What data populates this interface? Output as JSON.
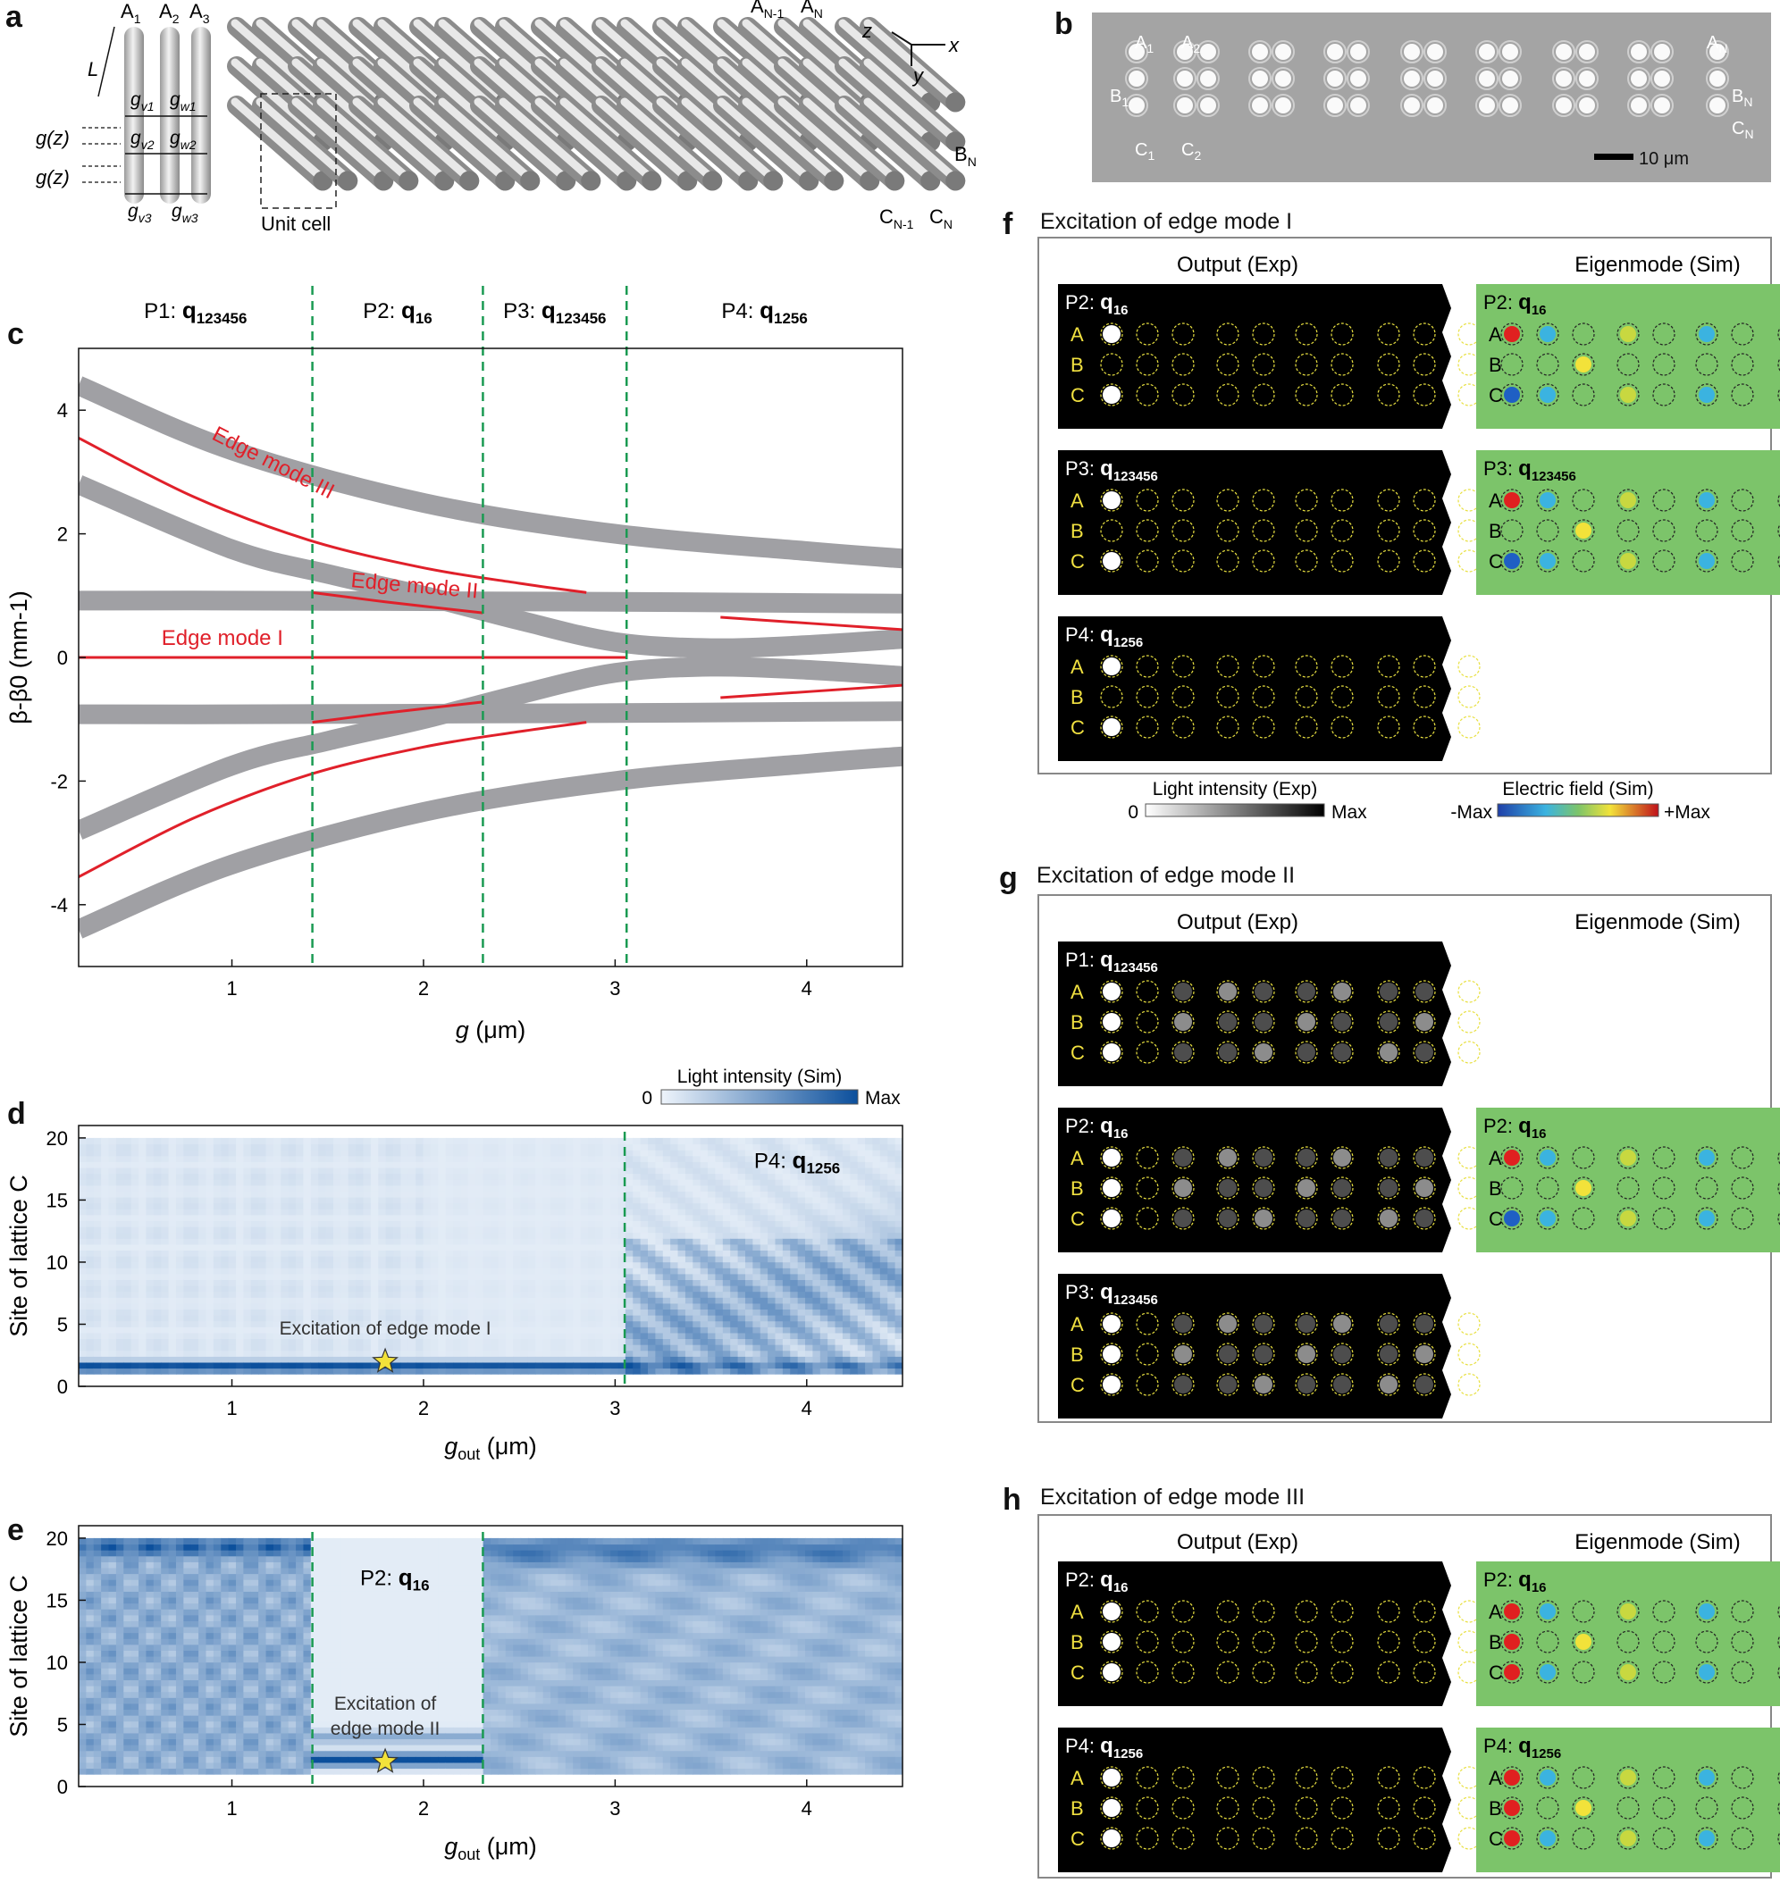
{
  "panel_letters": {
    "a": "a",
    "b": "b",
    "c": "c",
    "d": "d",
    "e": "e",
    "f": "f",
    "g": "g",
    "h": "h"
  },
  "panel_a": {
    "labels": {
      "A1": "A",
      "A2": "A",
      "A3": "A",
      "AN1": "A",
      "AN": "A",
      "BN": "B",
      "CN1": "C",
      "CN": "C",
      "L": "L",
      "gz": "g(z)",
      "gv": "g",
      "gw": "g",
      "unit_cell": "Unit cell",
      "axis_z": "z",
      "axis_x": "x",
      "axis_y": "y"
    },
    "subscripts": {
      "s1": "1",
      "s2": "2",
      "s3": "3",
      "sN": "N",
      "sN1": "N-1",
      "v1": "v1",
      "v2": "v2",
      "v3": "v3",
      "w1": "w1",
      "w2": "w2",
      "w3": "w3"
    }
  },
  "panel_b": {
    "labels": {
      "A1": "A",
      "A2": "A",
      "AN": "A",
      "B1": "B",
      "BN": "B",
      "C1": "C",
      "C2": "C",
      "CN": "C"
    },
    "scalebar": "10 μm"
  },
  "chart_data": [
    {
      "id": "c",
      "type": "line",
      "xlabel": "g (μm)",
      "ylabel": "β-β0 (mm-1)",
      "xlim": [
        0.2,
        4.5
      ],
      "ylim": [
        -5,
        5
      ],
      "xticks": [
        1,
        2,
        3,
        4
      ],
      "yticks": [
        -4,
        -2,
        0,
        2,
        4
      ],
      "phase_boundaries": [
        1.42,
        2.31,
        3.06
      ],
      "phases": [
        {
          "name": "P1:",
          "q": "q",
          "sub": "123456"
        },
        {
          "name": "P2:",
          "q": "q",
          "sub": "16"
        },
        {
          "name": "P3:",
          "q": "q",
          "sub": "123456"
        },
        {
          "name": "P4:",
          "q": "q",
          "sub": "1256"
        }
      ],
      "bulk_bands": [
        {
          "name": "top",
          "x": [
            0.2,
            1,
            2,
            3,
            4,
            4.5
          ],
          "y": [
            4.4,
            3.35,
            2.5,
            2.0,
            1.72,
            1.6
          ]
        },
        {
          "name": "upper",
          "x": [
            0.2,
            1,
            1.5,
            2,
            2.5,
            3,
            3.5,
            4,
            4.5
          ],
          "y": [
            2.8,
            1.75,
            1.35,
            1.0,
            0.6,
            0.25,
            0.15,
            0.2,
            0.3
          ]
        },
        {
          "name": "flat+",
          "x": [
            0.2,
            1,
            2,
            3,
            4,
            4.5
          ],
          "y": [
            0.92,
            0.92,
            0.91,
            0.9,
            0.88,
            0.87
          ]
        },
        {
          "name": "flat-",
          "x": [
            0.2,
            1,
            2,
            3,
            4,
            4.5
          ],
          "y": [
            -0.92,
            -0.92,
            -0.91,
            -0.9,
            -0.88,
            -0.87
          ]
        },
        {
          "name": "lower",
          "x": [
            0.2,
            1,
            1.5,
            2,
            2.5,
            3,
            3.5,
            4,
            4.5
          ],
          "y": [
            -2.8,
            -1.75,
            -1.35,
            -1.0,
            -0.6,
            -0.25,
            -0.15,
            -0.2,
            -0.3
          ]
        },
        {
          "name": "bottom",
          "x": [
            0.2,
            1,
            2,
            3,
            4,
            4.5
          ],
          "y": [
            -4.4,
            -3.35,
            -2.5,
            -2.0,
            -1.72,
            -1.6
          ]
        }
      ],
      "edge_modes": [
        {
          "label": "Edge mode III",
          "x": [
            0.2,
            0.8,
            1.4,
            2.0,
            2.5,
            2.85
          ],
          "y": [
            3.55,
            2.6,
            1.9,
            1.45,
            1.2,
            1.05
          ]
        },
        {
          "label": "",
          "x": [
            0.2,
            0.8,
            1.4,
            2.0,
            2.5,
            2.85
          ],
          "y": [
            -3.55,
            -2.6,
            -1.9,
            -1.45,
            -1.2,
            -1.05
          ]
        },
        {
          "label": "Edge mode II",
          "x": [
            1.42,
            1.8,
            2.31
          ],
          "y": [
            1.05,
            0.9,
            0.72
          ]
        },
        {
          "label": "",
          "x": [
            1.42,
            1.8,
            2.31
          ],
          "y": [
            -1.05,
            -0.9,
            -0.72
          ]
        },
        {
          "label": "Edge mode I",
          "x": [
            0.2,
            3.06
          ],
          "y": [
            0,
            0
          ]
        },
        {
          "label": "",
          "x": [
            3.55,
            4.5
          ],
          "y": [
            0.65,
            0.45
          ]
        },
        {
          "label": "",
          "x": [
            3.55,
            4.5
          ],
          "y": [
            -0.65,
            -0.45
          ]
        }
      ]
    },
    {
      "id": "d",
      "type": "heatmap",
      "xlabel": "g_out (μm)",
      "ylabel": "Site of lattice C",
      "xlim": [
        0.2,
        4.5
      ],
      "ylim": [
        0,
        21
      ],
      "xticks": [
        1,
        2,
        3,
        4
      ],
      "yticks": [
        0,
        5,
        10,
        15,
        20
      ],
      "phase_boundaries": [
        3.05
      ],
      "phase_label": {
        "name": "P4:",
        "q": "q",
        "sub": "1256"
      },
      "annotation": "Excitation of edge mode I",
      "star": {
        "x": 1.8,
        "y": 2
      },
      "colorbar": {
        "title": "Light intensity (Sim)",
        "min": "0",
        "max": "Max"
      }
    },
    {
      "id": "e",
      "type": "heatmap",
      "xlabel": "g_out (μm)",
      "ylabel": "Site of lattice C",
      "xlim": [
        0.2,
        4.5
      ],
      "ylim": [
        0,
        21
      ],
      "xticks": [
        1,
        2,
        3,
        4
      ],
      "yticks": [
        0,
        5,
        10,
        15,
        20
      ],
      "phase_boundaries": [
        1.42,
        2.31
      ],
      "phase_label": {
        "name": "P2:",
        "q": "q",
        "sub": "16"
      },
      "annotation": [
        "Excitation of",
        "edge mode II"
      ],
      "star": {
        "x": 1.8,
        "y": 2
      }
    }
  ],
  "panel_f": {
    "title": "Excitation of edge mode I",
    "col_exp": "Output (Exp)",
    "col_sim": "Eigenmode (Sim)",
    "rows": [
      {
        "phase": "P2:",
        "q": "q",
        "sub": "16",
        "has_sim": true
      },
      {
        "phase": "P3:",
        "q": "q",
        "sub": "123456",
        "has_sim": true
      },
      {
        "phase": "P4:",
        "q": "q",
        "sub": "1256",
        "has_sim": false
      }
    ],
    "colorbar_exp": {
      "title": "Light intensity (Exp)",
      "min": "0",
      "max": "Max"
    },
    "colorbar_sim": {
      "title": "Electric field (Sim)",
      "min": "-Max",
      "max": "+Max"
    }
  },
  "panel_g": {
    "title": "Excitation of edge mode II",
    "col_exp": "Output (Exp)",
    "col_sim": "Eigenmode (Sim)",
    "rows": [
      {
        "phase": "P1:",
        "q": "q",
        "sub": "123456",
        "has_sim": false
      },
      {
        "phase": "P2:",
        "q": "q",
        "sub": "16",
        "has_sim": true
      },
      {
        "phase": "P3:",
        "q": "q",
        "sub": "123456",
        "has_sim": false
      }
    ]
  },
  "panel_h": {
    "title": "Excitation of edge mode III",
    "col_exp": "Output (Exp)",
    "col_sim": "Eigenmode (Sim)",
    "rows": [
      {
        "phase": "P2:",
        "q": "q",
        "sub": "16",
        "has_sim": true
      },
      {
        "phase": "P4:",
        "q": "q",
        "sub": "1256",
        "has_sim": true
      }
    ]
  },
  "row_labels": {
    "A": "A",
    "B": "B",
    "C": "C"
  },
  "colors": {
    "band": "#a0a0a4",
    "edge": "#e0202a",
    "phase_line": "#1a9a52",
    "heat_low": "#eef4fb",
    "heat_high": "#0b4f9c",
    "sim_bg": "#7cc46a",
    "site_ring": "#e8e040",
    "star": "#f2e23a"
  }
}
